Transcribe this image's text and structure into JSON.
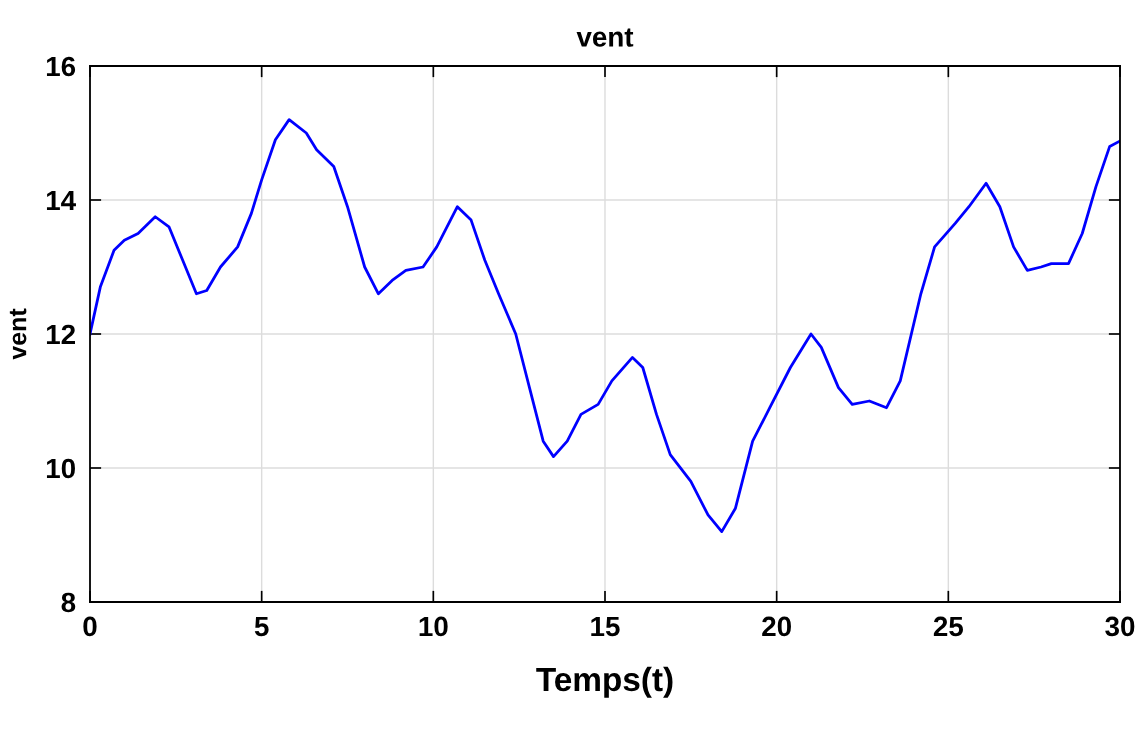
{
  "chart_data": {
    "type": "line",
    "title": "vent",
    "xlabel": "Temps(t)",
    "ylabel": "vent",
    "x": [
      0,
      0.3,
      0.7,
      1.0,
      1.4,
      1.9,
      2.3,
      2.7,
      3.1,
      3.4,
      3.8,
      4.3,
      4.7,
      5.0,
      5.4,
      5.8,
      6.3,
      6.6,
      7.1,
      7.5,
      8.0,
      8.4,
      8.8,
      9.2,
      9.7,
      10.1,
      10.7,
      11.1,
      11.5,
      11.9,
      12.4,
      12.8,
      13.2,
      13.5,
      13.9,
      14.3,
      14.8,
      15.2,
      15.8,
      16.1,
      16.5,
      16.9,
      17.5,
      18.0,
      18.4,
      18.8,
      19.3,
      19.8,
      20.4,
      21.0,
      21.3,
      21.8,
      22.2,
      22.7,
      23.2,
      23.6,
      24.2,
      24.6,
      25.2,
      25.6,
      26.1,
      26.5,
      26.9,
      27.3,
      27.7,
      28.0,
      28.5,
      28.9,
      29.3,
      29.7,
      30
    ],
    "series": [
      {
        "color": "#0000ff",
        "values": [
          12,
          12.7,
          13.25,
          13.4,
          13.5,
          13.75,
          13.6,
          13.1,
          12.6,
          12.65,
          13.0,
          13.3,
          13.8,
          14.3,
          14.9,
          15.2,
          15.0,
          14.75,
          14.5,
          13.9,
          13.0,
          12.6,
          12.8,
          12.95,
          13.0,
          13.3,
          13.9,
          13.7,
          13.1,
          12.6,
          12.0,
          11.2,
          10.4,
          10.17,
          10.4,
          10.8,
          10.95,
          11.3,
          11.65,
          11.5,
          10.8,
          10.2,
          9.8,
          9.3,
          9.05,
          9.4,
          10.4,
          10.9,
          11.5,
          12.0,
          11.8,
          11.2,
          10.95,
          11.0,
          10.9,
          11.3,
          12.6,
          13.3,
          13.65,
          13.9,
          14.25,
          13.9,
          13.3,
          12.95,
          13.0,
          13.05,
          13.05,
          13.5,
          14.2,
          14.8,
          14.88
        ]
      }
    ],
    "xlim": [
      0,
      30
    ],
    "xticks": [
      0,
      5,
      10,
      15,
      20,
      25,
      30
    ],
    "ylim": [
      8,
      16
    ],
    "yticks": [
      8,
      10,
      12,
      14,
      16
    ],
    "grid": true,
    "marker": "none",
    "line_style": "solid"
  }
}
